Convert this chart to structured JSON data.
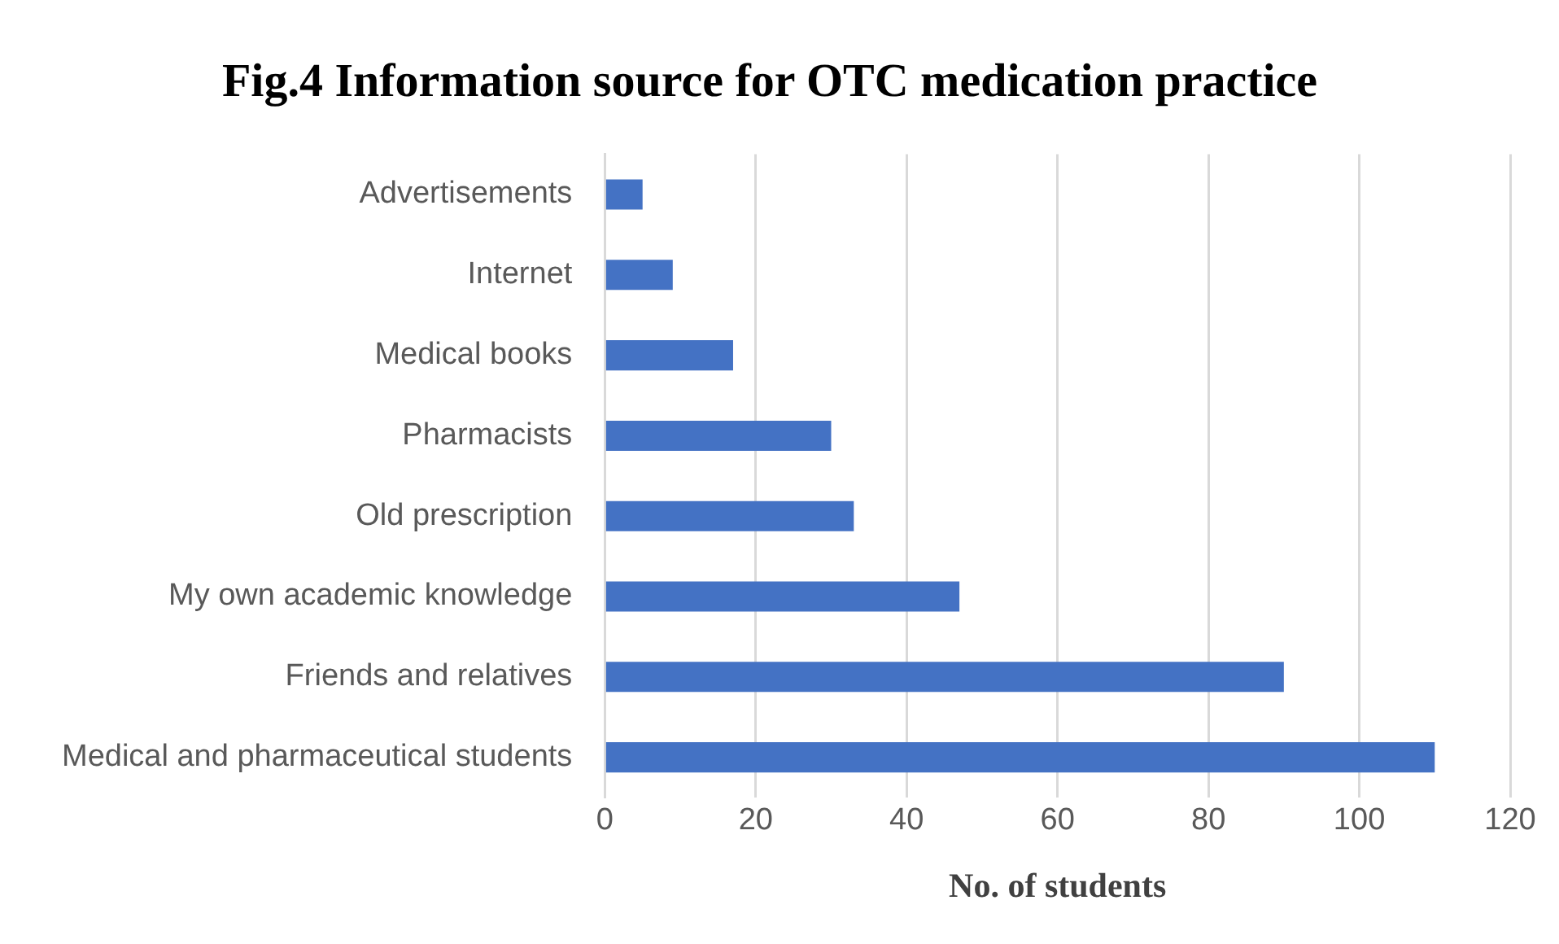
{
  "chart_data": {
    "type": "bar",
    "orientation": "horizontal",
    "title": "Fig.4 Information source for OTC medication practice",
    "xlabel": "No. of students",
    "categories": [
      "Advertisements",
      "Internet",
      "Medical books",
      "Pharmacists",
      "Old prescription",
      "My own academic knowledge",
      "Friends and relatives",
      "Medical and pharmaceutical students"
    ],
    "values": [
      5,
      9,
      17,
      30,
      33,
      47,
      90,
      110
    ],
    "color": "#4472c4",
    "xlim": [
      0,
      120
    ],
    "xticks": [
      0,
      20,
      40,
      60,
      80,
      100,
      120
    ],
    "grid": "x",
    "legend": false
  }
}
